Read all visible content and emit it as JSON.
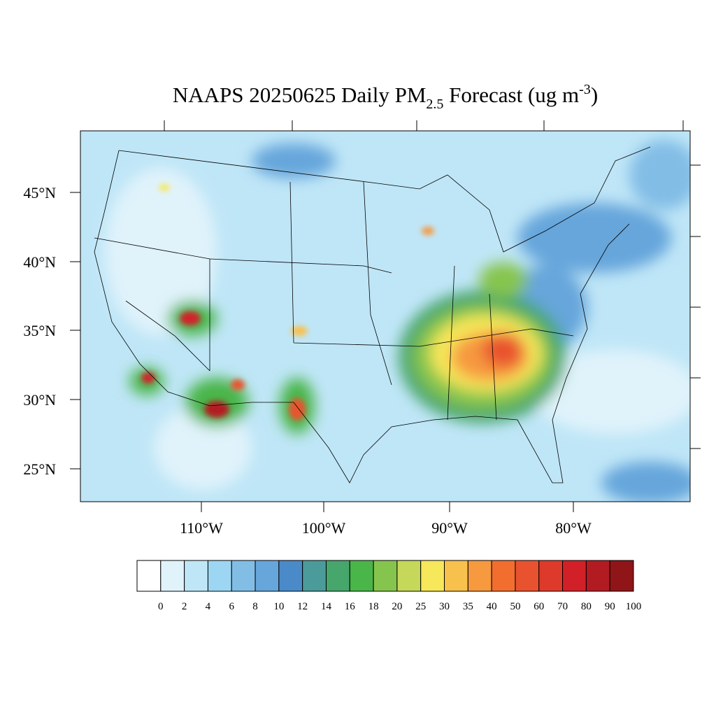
{
  "title": {
    "main": "NAAPS 20250625 Daily PM",
    "subscript": "2.5",
    "after": " Forecast (ug m",
    "superscript": "-3",
    "end": ")"
  },
  "lat_labels": [
    "45°N",
    "40°N",
    "35°N",
    "30°N",
    "25°N"
  ],
  "lon_labels": [
    "110°W",
    "100°W",
    "90°W",
    "80°W"
  ],
  "colorbar": {
    "levels": [
      0,
      2,
      4,
      6,
      8,
      10,
      12,
      14,
      16,
      18,
      20,
      25,
      30,
      35,
      40,
      50,
      60,
      70,
      80,
      90,
      100
    ],
    "colors": [
      "#ffffff",
      "#e0f3fb",
      "#bfe6f7",
      "#9dd6f2",
      "#82bde6",
      "#66a6db",
      "#4a8ac9",
      "#4b9b9b",
      "#46a66c",
      "#4ab548",
      "#86c54d",
      "#c5d85a",
      "#f7e75a",
      "#f8c04c",
      "#f6993f",
      "#f26e2f",
      "#e9522f",
      "#de3a2b",
      "#d22029",
      "#b31b22",
      "#8f1518"
    ]
  }
}
